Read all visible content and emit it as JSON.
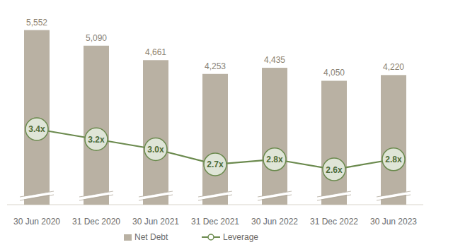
{
  "chart_data": {
    "type": "bar",
    "categories": [
      "30 Jun 2020",
      "31 Dec 2020",
      "30 Jun 2021",
      "31 Dec 2021",
      "30 Jun 2022",
      "31 Dec 2022",
      "30 Jun 2023"
    ],
    "series": [
      {
        "name": "Net Debt",
        "type": "bar",
        "color": "#b9b1a3",
        "values": [
          5552,
          5090,
          4661,
          4253,
          4435,
          4050,
          4220
        ],
        "value_labels": [
          "5,552",
          "5,090",
          "4,661",
          "4,253",
          "4,435",
          "4,050",
          "4,220"
        ]
      },
      {
        "name": "Leverage",
        "type": "line",
        "axis": "y2",
        "color": "#6b8a4e",
        "marker": "circle",
        "values": [
          3.4,
          3.2,
          3.0,
          2.7,
          2.8,
          2.6,
          2.8
        ],
        "value_labels": [
          "3.4x",
          "3.2x",
          "3.0x",
          "2.7x",
          "2.8x",
          "2.6x",
          "2.8x"
        ]
      }
    ],
    "ylim": [
      380,
      5900
    ],
    "y2lim": [
      1.9,
      5.6
    ],
    "data_labels": true,
    "tick_labels": "x",
    "legend": "bottom"
  }
}
